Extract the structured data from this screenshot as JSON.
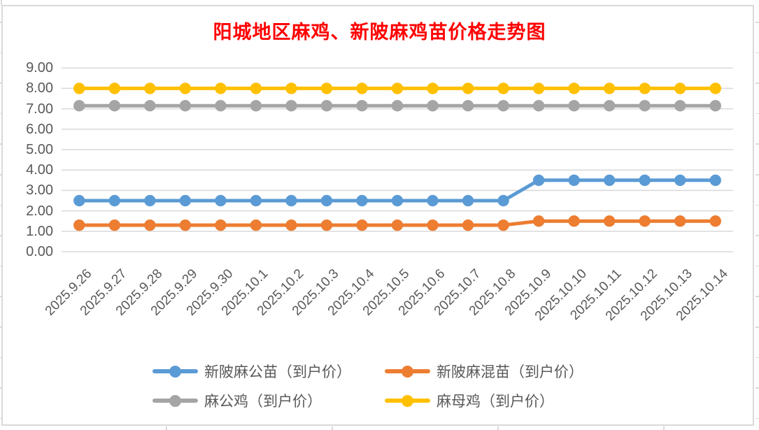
{
  "title_color": "#FF0000",
  "colors": {
    "gridline": "#D9D9D9",
    "axis_text": "#595959",
    "chart_border": "#D9D9D9",
    "background": "#FFFFFF"
  },
  "chart_data": {
    "type": "line",
    "title": "阳城地区麻鸡、新陂麻鸡苗价格走势图",
    "categories": [
      "2025.9.26",
      "2025.9.27",
      "2025.9.28",
      "2025.9.29",
      "2025.9.30",
      "2025.10.1",
      "2025.10.2",
      "2025.10.3",
      "2025.10.4",
      "2025.10.5",
      "2025.10.6",
      "2025.10.7",
      "2025.10.8",
      "2025.10.9",
      "2025.10.10",
      "2025.10.11",
      "2025.10.12",
      "2025.10.13",
      "2025.10.14"
    ],
    "series": [
      {
        "name": "新陂麻公苗（到户价）",
        "color": "#5B9BD5",
        "values": [
          2.5,
          2.5,
          2.5,
          2.5,
          2.5,
          2.5,
          2.5,
          2.5,
          2.5,
          2.5,
          2.5,
          2.5,
          2.5,
          3.5,
          3.5,
          3.5,
          3.5,
          3.5,
          3.5
        ]
      },
      {
        "name": "新陂麻混苗（到户价）",
        "color": "#ED7D31",
        "values": [
          1.3,
          1.3,
          1.3,
          1.3,
          1.3,
          1.3,
          1.3,
          1.3,
          1.3,
          1.3,
          1.3,
          1.3,
          1.3,
          1.5,
          1.5,
          1.5,
          1.5,
          1.5,
          1.5
        ]
      },
      {
        "name": "麻公鸡（到户价）",
        "color": "#A5A5A5",
        "values": [
          7.15,
          7.15,
          7.15,
          7.15,
          7.15,
          7.15,
          7.15,
          7.15,
          7.15,
          7.15,
          7.15,
          7.15,
          7.15,
          7.15,
          7.15,
          7.15,
          7.15,
          7.15,
          7.15
        ]
      },
      {
        "name": "麻母鸡（到户价）",
        "color": "#FFC000",
        "values": [
          8,
          8,
          8,
          8,
          8,
          8,
          8,
          8,
          8,
          8,
          8,
          8,
          8,
          8,
          8,
          8,
          8,
          8,
          8
        ]
      }
    ],
    "ylim": [
      0,
      9
    ],
    "ytick_step": 1,
    "ytick_labels": [
      "0.00",
      "1.00",
      "2.00",
      "3.00",
      "4.00",
      "5.00",
      "6.00",
      "7.00",
      "8.00",
      "9.00"
    ],
    "grid": true,
    "legend_position": "bottom",
    "marker": "circle"
  }
}
